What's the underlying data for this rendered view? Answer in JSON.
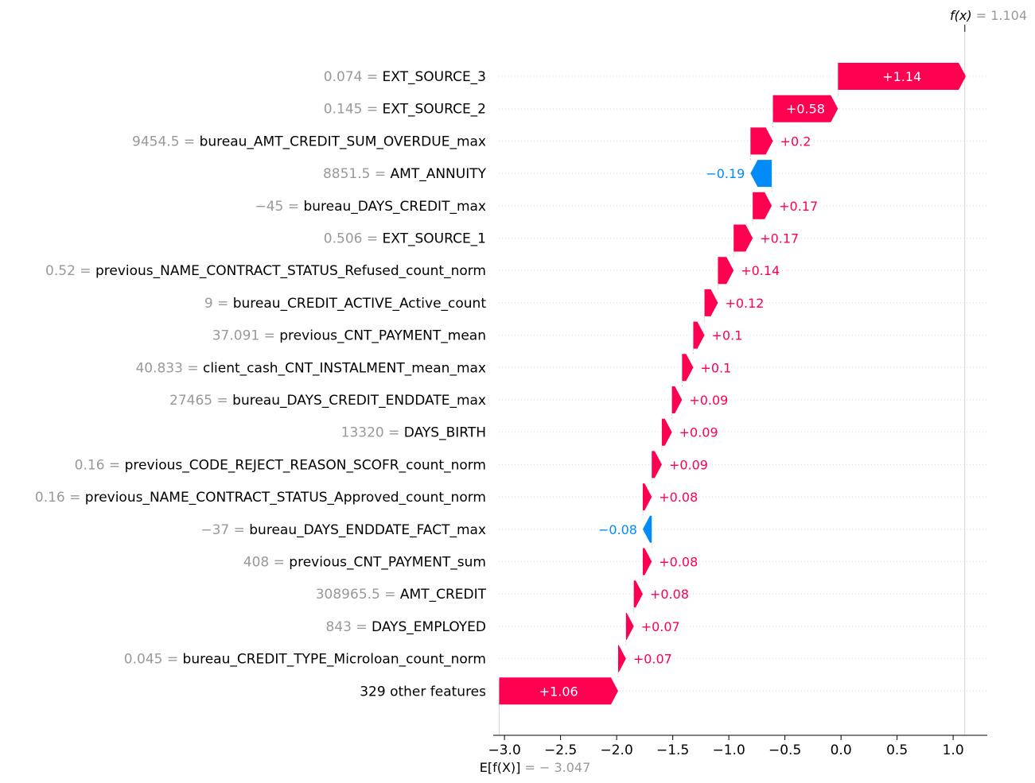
{
  "chart_data": {
    "type": "waterfall",
    "title": "",
    "xlabel": "",
    "ylabel": "",
    "xlim": [
      -3.047,
      1.104
    ],
    "x_ticks": [
      -3.0,
      -2.5,
      -2.0,
      -1.5,
      -1.0,
      -0.5,
      0.0,
      0.5,
      1.0
    ],
    "x_tick_labels": [
      "−3.0",
      "−2.5",
      "−2.0",
      "−1.5",
      "−1.0",
      "−0.5",
      "0.0",
      "0.5",
      "1.0"
    ],
    "base_value": -3.047,
    "base_value_label": "− 3.047",
    "base_label_text": "E[f(X)]",
    "output_value": 1.104,
    "output_value_label": "1.104",
    "output_label_text": "f(x)",
    "positive_color": "#ff0051",
    "negative_color": "#008bfb",
    "features": [
      {
        "feature_value": "0.074 =",
        "name": "EXT_SOURCE_3",
        "contribution": 1.14,
        "label": "+1.14"
      },
      {
        "feature_value": "0.145 =",
        "name": "EXT_SOURCE_2",
        "contribution": 0.58,
        "label": "+0.58"
      },
      {
        "feature_value": "9454.5 =",
        "name": "bureau_AMT_CREDIT_SUM_OVERDUE_max",
        "contribution": 0.2,
        "label": "+0.2"
      },
      {
        "feature_value": "8851.5 =",
        "name": "AMT_ANNUITY",
        "contribution": -0.19,
        "label": "−0.19"
      },
      {
        "feature_value": "−45 =",
        "name": "bureau_DAYS_CREDIT_max",
        "contribution": 0.17,
        "label": "+0.17"
      },
      {
        "feature_value": "0.506 =",
        "name": "EXT_SOURCE_1",
        "contribution": 0.17,
        "label": "+0.17"
      },
      {
        "feature_value": "0.52 =",
        "name": "previous_NAME_CONTRACT_STATUS_Refused_count_norm",
        "contribution": 0.14,
        "label": "+0.14"
      },
      {
        "feature_value": "9 =",
        "name": "bureau_CREDIT_ACTIVE_Active_count",
        "contribution": 0.12,
        "label": "+0.12"
      },
      {
        "feature_value": "37.091 =",
        "name": "previous_CNT_PAYMENT_mean",
        "contribution": 0.1,
        "label": "+0.1"
      },
      {
        "feature_value": "40.833 =",
        "name": "client_cash_CNT_INSTALMENT_mean_max",
        "contribution": 0.1,
        "label": "+0.1"
      },
      {
        "feature_value": "27465 =",
        "name": "bureau_DAYS_CREDIT_ENDDATE_max",
        "contribution": 0.09,
        "label": "+0.09"
      },
      {
        "feature_value": "13320 =",
        "name": "DAYS_BIRTH",
        "contribution": 0.09,
        "label": "+0.09"
      },
      {
        "feature_value": "0.16 =",
        "name": "previous_CODE_REJECT_REASON_SCOFR_count_norm",
        "contribution": 0.09,
        "label": "+0.09"
      },
      {
        "feature_value": "0.16 =",
        "name": "previous_NAME_CONTRACT_STATUS_Approved_count_norm",
        "contribution": 0.08,
        "label": "+0.08"
      },
      {
        "feature_value": "−37 =",
        "name": "bureau_DAYS_ENDDATE_FACT_max",
        "contribution": -0.08,
        "label": "−0.08"
      },
      {
        "feature_value": "408 =",
        "name": "previous_CNT_PAYMENT_sum",
        "contribution": 0.08,
        "label": "+0.08"
      },
      {
        "feature_value": "308965.5 =",
        "name": "AMT_CREDIT",
        "contribution": 0.08,
        "label": "+0.08"
      },
      {
        "feature_value": "843 =",
        "name": "DAYS_EMPLOYED",
        "contribution": 0.07,
        "label": "+0.07"
      },
      {
        "feature_value": "0.045 =",
        "name": "bureau_CREDIT_TYPE_Microloan_count_norm",
        "contribution": 0.07,
        "label": "+0.07"
      },
      {
        "feature_value": "",
        "name": "329 other features",
        "contribution": 1.06,
        "label": "+1.06"
      }
    ]
  }
}
